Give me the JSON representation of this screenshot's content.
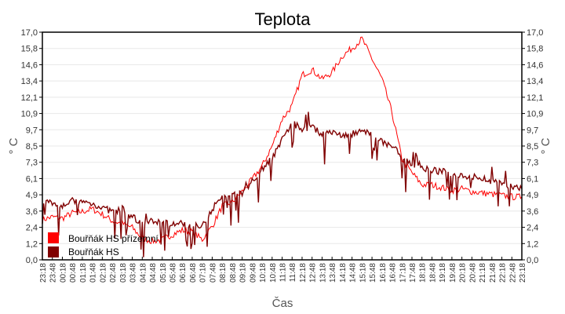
{
  "chart_data": {
    "type": "line",
    "title": "Teplota",
    "xlabel": "Čas",
    "ylabel": "° C",
    "ylabel_right": "° C",
    "ylim": [
      0.0,
      17.0
    ],
    "yticks": [
      "0,0",
      "1,2",
      "2,4",
      "3,6",
      "4,9",
      "6,1",
      "7,3",
      "8,5",
      "9,7",
      "10,9",
      "12,1",
      "13,4",
      "14,6",
      "15,8",
      "17,0"
    ],
    "grid": true,
    "legend_position": "lower-left",
    "categories": [
      "23:18",
      "23:48",
      "00:18",
      "00:48",
      "01:18",
      "01:48",
      "02:18",
      "02:48",
      "03:18",
      "03:48",
      "04:18",
      "04:48",
      "05:18",
      "05:48",
      "06:18",
      "06:48",
      "07:18",
      "07:48",
      "08:18",
      "08:48",
      "09:18",
      "09:48",
      "10:18",
      "10:48",
      "11:18",
      "11:48",
      "12:18",
      "12:48",
      "13:18",
      "13:48",
      "14:18",
      "14:48",
      "15:18",
      "15:48",
      "16:18",
      "16:48",
      "17:18",
      "17:48",
      "18:18",
      "18:48",
      "19:18",
      "19:48",
      "20:18",
      "20:48",
      "21:18",
      "21:48",
      "22:18",
      "22:48",
      "23:18"
    ],
    "series": [
      {
        "name": "Bouřňák HS přízemní",
        "color": "#ff0000",
        "values": [
          3.0,
          3.2,
          3.1,
          3.5,
          3.6,
          3.8,
          3.4,
          2.9,
          2.7,
          2.4,
          1.6,
          1.4,
          1.5,
          1.9,
          2.2,
          2.1,
          1.5,
          2.5,
          4.0,
          4.3,
          5.1,
          6.0,
          7.0,
          8.5,
          10.5,
          11.5,
          13.8,
          14.2,
          13.5,
          14.0,
          15.2,
          15.8,
          16.5,
          15.0,
          13.5,
          11.0,
          7.5,
          6.5,
          5.6,
          5.6,
          5.4,
          5.2,
          5.3,
          5.1,
          5.0,
          4.9,
          4.8,
          4.7,
          4.7
        ]
      },
      {
        "name": "Bouřňák HS",
        "color": "#800000",
        "values": [
          4.4,
          4.3,
          4.1,
          4.4,
          4.3,
          4.2,
          3.9,
          3.6,
          3.8,
          3.2,
          2.7,
          2.9,
          2.8,
          2.7,
          2.7,
          2.6,
          2.6,
          3.8,
          4.7,
          4.8,
          5.0,
          5.9,
          6.8,
          7.6,
          9.0,
          10.2,
          9.8,
          9.9,
          9.4,
          9.5,
          9.3,
          9.4,
          9.6,
          9.3,
          8.8,
          8.5,
          7.8,
          7.1,
          6.8,
          6.7,
          6.6,
          6.4,
          6.3,
          6.2,
          6.1,
          5.9,
          5.7,
          5.5,
          5.3
        ]
      }
    ]
  },
  "header": {
    "title": "Teplota"
  },
  "axes": {
    "x_label": "Čas",
    "y_label_left": "° C",
    "y_label_right": "° C"
  },
  "legend": {
    "items": [
      {
        "label": "Bouřňák HS přízemní",
        "color": "#ff0000"
      },
      {
        "label": "Bouřňák HS",
        "color": "#800000"
      }
    ]
  }
}
